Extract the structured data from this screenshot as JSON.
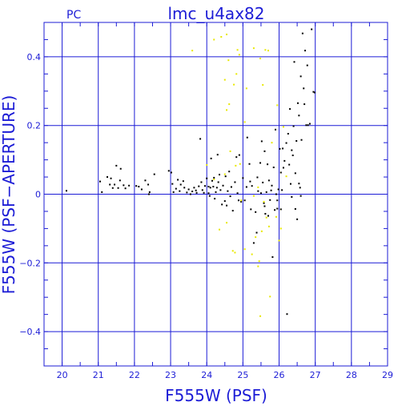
{
  "chart_data": {
    "type": "scatter",
    "corner_label": "PC",
    "title": "lmc_u4ax82",
    "xlabel": "F555W (PSF)",
    "ylabel": "F555W (PSF−APERTURE)",
    "xlim": [
      19.5,
      29
    ],
    "ylim": [
      -0.5,
      0.5
    ],
    "x_ticks": [
      20,
      21,
      22,
      23,
      24,
      25,
      26,
      27,
      28,
      29
    ],
    "y_ticks": [
      -0.4,
      -0.2,
      0,
      0.2,
      0.4
    ],
    "y_tick_labels": [
      "−0.4",
      "−0.2",
      "0",
      "0.2",
      "0.4"
    ],
    "grid": true,
    "colors": {
      "frame": "#1c1cd6",
      "black_series": "#000000",
      "yellow_series": "#e8e800"
    },
    "series": [
      {
        "color": "#000000",
        "points": [
          [
            20.12,
            0.01
          ],
          [
            21.05,
            0.037
          ],
          [
            21.1,
            0.006
          ],
          [
            21.25,
            0.05
          ],
          [
            21.35,
            0.046
          ],
          [
            21.32,
            0.028
          ],
          [
            21.4,
            0.018
          ],
          [
            21.45,
            0.028
          ],
          [
            21.5,
            0.083
          ],
          [
            21.55,
            0.018
          ],
          [
            21.62,
            0.074
          ],
          [
            21.6,
            0.04
          ],
          [
            21.7,
            0.026
          ],
          [
            21.75,
            0.017
          ],
          [
            21.85,
            0.025
          ],
          [
            22.05,
            0.024
          ],
          [
            22.12,
            0.022
          ],
          [
            22.2,
            0.014
          ],
          [
            22.3,
            0.04
          ],
          [
            22.38,
            0.028
          ],
          [
            22.42,
            0.006
          ],
          [
            22.4,
            0.0
          ],
          [
            22.55,
            0.058
          ],
          [
            22.95,
            0.068
          ],
          [
            23.02,
            0.063
          ],
          [
            23.05,
            0.03
          ],
          [
            23.08,
            0.006
          ],
          [
            23.15,
            0.016
          ],
          [
            23.2,
            0.042
          ],
          [
            23.25,
            0.009
          ],
          [
            23.28,
            0.028
          ],
          [
            23.35,
            0.038
          ],
          [
            23.38,
            0.019
          ],
          [
            23.45,
            0.005
          ],
          [
            23.5,
            0.014
          ],
          [
            23.55,
            0.0
          ],
          [
            23.6,
            0.008
          ],
          [
            23.65,
            0.019
          ],
          [
            23.7,
            0.011
          ],
          [
            23.72,
            0.004
          ],
          [
            23.78,
            0.023
          ],
          [
            23.82,
            0.161
          ],
          [
            23.85,
            0.035
          ],
          [
            23.88,
            0.012
          ],
          [
            23.92,
            0.004
          ],
          [
            23.95,
            0.024
          ],
          [
            24.0,
            0.046
          ],
          [
            24.05,
            0.003
          ],
          [
            24.08,
            -0.005
          ],
          [
            24.1,
            0.019
          ],
          [
            24.12,
            0.104
          ],
          [
            24.15,
            0.039
          ],
          [
            24.18,
            0.022
          ],
          [
            24.2,
            0.048
          ],
          [
            24.22,
            -0.013
          ],
          [
            24.25,
            0.006
          ],
          [
            24.28,
            0.019
          ],
          [
            24.3,
            0.115
          ],
          [
            24.32,
            0.035
          ],
          [
            24.35,
            0.057
          ],
          [
            24.38,
            0.012
          ],
          [
            24.42,
            -0.03
          ],
          [
            24.45,
            0.025
          ],
          [
            24.5,
            -0.02
          ],
          [
            24.52,
            0.052
          ],
          [
            24.55,
            -0.033
          ],
          [
            24.58,
            0.009
          ],
          [
            24.62,
            0.066
          ],
          [
            24.65,
            -0.006
          ],
          [
            24.68,
            0.021
          ],
          [
            24.72,
            -0.048
          ],
          [
            24.78,
            0.035
          ],
          [
            24.82,
            0.108
          ],
          [
            24.85,
            0.003
          ],
          [
            24.88,
            -0.018
          ],
          [
            24.9,
            0.114
          ],
          [
            24.95,
            -0.022
          ],
          [
            25.0,
            0.047
          ],
          [
            25.05,
            -0.018
          ],
          [
            25.1,
            0.021
          ],
          [
            25.12,
            0.165
          ],
          [
            25.18,
            0.088
          ],
          [
            25.2,
            0.037
          ],
          [
            25.22,
            -0.044
          ],
          [
            25.25,
            0.024
          ],
          [
            25.3,
            -0.142
          ],
          [
            25.35,
            -0.052
          ],
          [
            25.38,
            -0.112
          ],
          [
            25.4,
            0.049
          ],
          [
            25.42,
            0.009
          ],
          [
            25.48,
            0.091
          ],
          [
            25.5,
            0.003
          ],
          [
            25.52,
            0.154
          ],
          [
            25.55,
            0.034
          ],
          [
            25.58,
            -0.026
          ],
          [
            25.6,
            0.125
          ],
          [
            25.62,
            -0.057
          ],
          [
            25.65,
            0.006
          ],
          [
            25.68,
            0.087
          ],
          [
            25.7,
            -0.063
          ],
          [
            25.72,
            0.04
          ],
          [
            25.75,
            -0.017
          ],
          [
            25.78,
            0.011
          ],
          [
            25.8,
            0.025
          ],
          [
            25.82,
            -0.183
          ],
          [
            25.85,
            0.078
          ],
          [
            25.88,
            -0.046
          ],
          [
            25.9,
            0.188
          ],
          [
            25.92,
            0.0
          ],
          [
            25.95,
            -0.018
          ],
          [
            25.98,
            0.014
          ],
          [
            26.02,
            0.132
          ],
          [
            26.05,
            0.063
          ],
          [
            26.08,
            0.012
          ],
          [
            26.1,
            0.133
          ],
          [
            26.12,
            0.077
          ],
          [
            26.15,
            0.097
          ],
          [
            26.2,
            0.149
          ],
          [
            26.22,
            -0.349
          ],
          [
            26.25,
            0.176
          ],
          [
            26.28,
            0.086
          ],
          [
            26.3,
            0.248
          ],
          [
            26.35,
            0.128
          ],
          [
            26.38,
            0.113
          ],
          [
            26.4,
            0.198
          ],
          [
            26.42,
            0.385
          ],
          [
            26.45,
            0.061
          ],
          [
            26.48,
            0.155
          ],
          [
            26.5,
            -0.073
          ],
          [
            26.52,
            0.265
          ],
          [
            26.55,
            0.229
          ],
          [
            26.58,
            0.019
          ],
          [
            26.6,
            0.343
          ],
          [
            26.62,
            0.158
          ],
          [
            26.65,
            0.468
          ],
          [
            26.68,
            0.308
          ],
          [
            26.7,
            0.262
          ],
          [
            26.72,
            0.418
          ],
          [
            26.75,
            0.201
          ],
          [
            26.78,
            0.375
          ],
          [
            26.8,
            0.201
          ],
          [
            26.85,
            0.205
          ],
          [
            26.9,
            0.48
          ],
          [
            26.95,
            0.298
          ],
          [
            26.98,
            0.296
          ],
          [
            26.45,
            -0.043
          ],
          [
            26.32,
            0.03
          ],
          [
            26.35,
            -0.008
          ],
          [
            26.55,
            0.031
          ],
          [
            26.6,
            -0.005
          ],
          [
            25.95,
            -0.042
          ],
          [
            24.05,
            0.022
          ],
          [
            25.6,
            -0.035
          ],
          [
            26.05,
            -0.044
          ]
        ]
      },
      {
        "color": "#e8e800",
        "points": [
          [
            23.6,
            0.418
          ],
          [
            24.2,
            0.45
          ],
          [
            24.4,
            0.458
          ],
          [
            24.55,
            0.465
          ],
          [
            24.6,
            0.39
          ],
          [
            24.5,
            0.333
          ],
          [
            24.75,
            0.319
          ],
          [
            24.62,
            0.262
          ],
          [
            24.55,
            0.245
          ],
          [
            24.82,
            0.35
          ],
          [
            24.85,
            0.42
          ],
          [
            24.9,
            0.406
          ],
          [
            25.1,
            0.308
          ],
          [
            25.3,
            0.425
          ],
          [
            25.48,
            0.395
          ],
          [
            25.55,
            0.318
          ],
          [
            25.62,
            0.42
          ],
          [
            25.7,
            0.418
          ],
          [
            25.95,
            0.259
          ],
          [
            26.12,
            0.196
          ],
          [
            24.65,
            0.125
          ],
          [
            24.8,
            0.083
          ],
          [
            24.92,
            0.088
          ],
          [
            25.05,
            0.21
          ],
          [
            24.5,
            0.058
          ],
          [
            24.0,
            0.085
          ],
          [
            24.35,
            -0.103
          ],
          [
            24.55,
            -0.083
          ],
          [
            24.72,
            -0.165
          ],
          [
            24.78,
            -0.17
          ],
          [
            25.3,
            -0.005
          ],
          [
            25.35,
            -0.125
          ],
          [
            25.42,
            -0.21
          ],
          [
            25.45,
            -0.195
          ],
          [
            25.48,
            -0.355
          ],
          [
            25.52,
            -0.108
          ],
          [
            25.58,
            -0.022
          ],
          [
            25.65,
            -0.068
          ],
          [
            25.72,
            -0.094
          ],
          [
            25.75,
            -0.298
          ],
          [
            25.92,
            -0.066
          ],
          [
            26.05,
            -0.1
          ],
          [
            26.0,
            -0.135
          ],
          [
            25.05,
            -0.16
          ],
          [
            25.25,
            -0.175
          ],
          [
            25.42,
            0.02
          ],
          [
            26.2,
            0.052
          ],
          [
            25.8,
            0.15
          ],
          [
            24.2,
            0.043
          ],
          [
            24.95,
            -0.018
          ]
        ]
      }
    ]
  }
}
